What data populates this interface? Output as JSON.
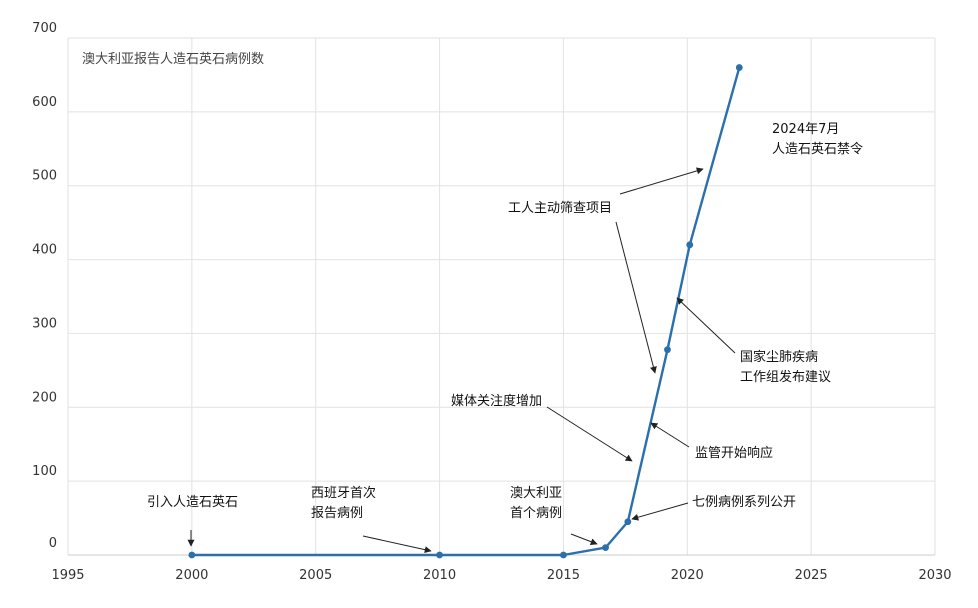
{
  "chart_data": {
    "type": "line",
    "title": "澳大利亚报告人造石英石病例数",
    "xlabel": "",
    "ylabel": "",
    "xlim": [
      1995,
      2030
    ],
    "ylim": [
      0,
      700
    ],
    "x_ticks": [
      "1995",
      "2000",
      "2005",
      "2010",
      "2015",
      "2020",
      "2025",
      "2030"
    ],
    "y_ticks": [
      "0",
      "100",
      "200",
      "300",
      "400",
      "500",
      "600",
      "700"
    ],
    "grid": true,
    "legend": "none",
    "line_color": "#2b6fad",
    "series": [
      {
        "x": [
          2000,
          2010,
          2015,
          2016.7,
          2017.6,
          2019.2,
          2020.1,
          2022.1
        ],
        "y": [
          0,
          0,
          0,
          10,
          45,
          278,
          420,
          660
        ]
      }
    ],
    "annotations": [
      {
        "lines": [
          "引入人造石英石"
        ],
        "x": 2000,
        "y": 0
      },
      {
        "lines": [
          "西班牙首次",
          "报告病例"
        ],
        "x": 2010,
        "y": 0
      },
      {
        "lines": [
          "澳大利亚",
          "首个病例"
        ],
        "x": 2016.5,
        "y": 10
      },
      {
        "lines": [
          "七例病例系列公开"
        ],
        "x": 2017.9,
        "y": 50
      },
      {
        "lines": [
          "媒体关注度增加"
        ],
        "x": 2017.9,
        "y": 125
      },
      {
        "lines": [
          "监管开始响应"
        ],
        "x": 2018.7,
        "y": 175
      },
      {
        "lines": [
          "工人主动筛查项目"
        ],
        "x": 2018.9,
        "y": 240
      },
      {
        "lines": [
          "国家尘肺疾病",
          "工作组发布建议"
        ],
        "x": 2019.8,
        "y": 350
      },
      {
        "lines": [
          "2024年7月",
          "人造石英石禁令"
        ],
        "x": 2020.7,
        "y": 525
      }
    ]
  }
}
